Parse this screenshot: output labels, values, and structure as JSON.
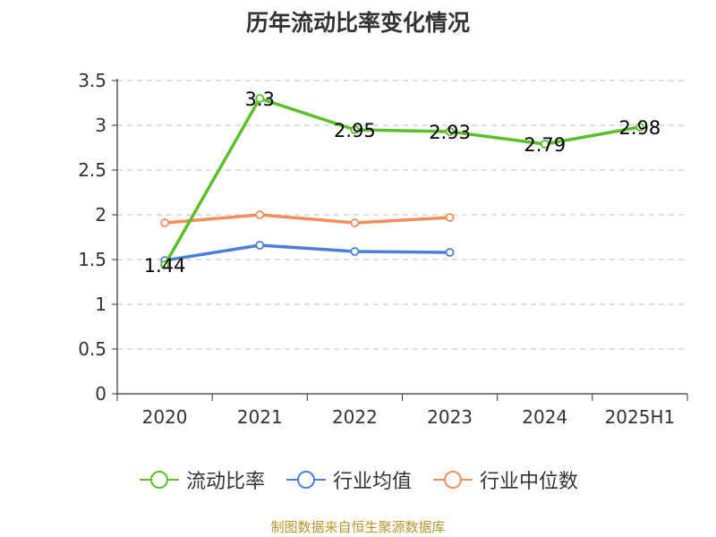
{
  "chart_data": {
    "type": "line",
    "title": "历年流动比率变化情况",
    "categories": [
      "2020",
      "2021",
      "2022",
      "2023",
      "2024",
      "2025H1"
    ],
    "ylim": [
      0,
      3.5
    ],
    "yticks": [
      "0",
      "0.5",
      "1",
      "1.5",
      "2",
      "2.5",
      "3",
      "3.5"
    ],
    "grid": true,
    "legend_position": "bottom",
    "series": [
      {
        "name": "流动比率",
        "color": "#5cbf2a",
        "values": [
          1.44,
          3.3,
          2.95,
          2.93,
          2.79,
          2.98
        ],
        "labels": [
          "1.44",
          "3.3",
          "2.95",
          "2.93",
          "2.79",
          "2.98"
        ]
      },
      {
        "name": "行业均值",
        "color": "#4c7fd9",
        "values": [
          1.49,
          1.66,
          1.59,
          1.58,
          null,
          null
        ]
      },
      {
        "name": "行业中位数",
        "color": "#f28e5c",
        "values": [
          1.91,
          2.0,
          1.91,
          1.97,
          null,
          null
        ]
      }
    ]
  },
  "source": "制图数据来自恒生聚源数据库"
}
